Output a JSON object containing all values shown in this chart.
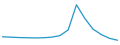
{
  "x": [
    0,
    1,
    2,
    3,
    4,
    5,
    6,
    7,
    8,
    9,
    10,
    11,
    12,
    13,
    14
  ],
  "y": [
    1.2,
    1.1,
    1.0,
    0.95,
    0.9,
    0.95,
    1.1,
    1.5,
    3.0,
    9.5,
    6.0,
    3.2,
    1.8,
    0.8,
    0.3
  ],
  "line_color": "#2196c8",
  "line_width": 0.9,
  "background_color": "#ffffff",
  "ylim": [
    0,
    10.5
  ],
  "xlim": [
    0,
    14
  ]
}
